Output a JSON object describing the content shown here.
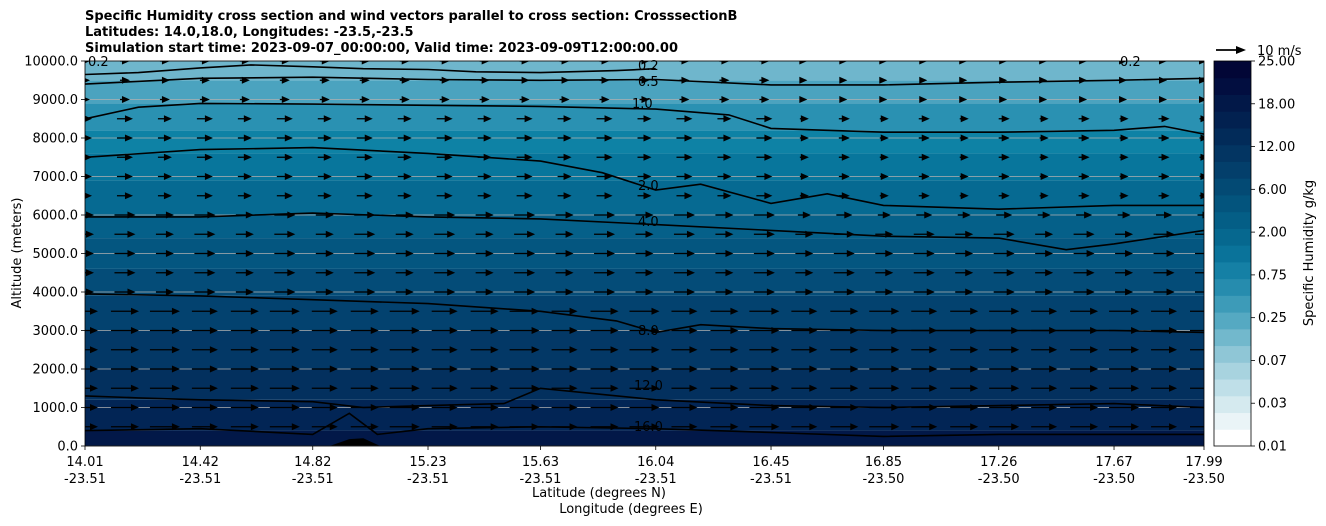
{
  "title_lines": [
    "Specific Humidity cross section and wind vectors parallel to cross section: CrosssectionB",
    "Latitudes: 14.0,18.0, Longitudes: -23.5,-23.5",
    "Simulation start time: 2023-09-07_00:00:00, Valid time: 2023-09-09T12:00:00.00"
  ],
  "chart_data": {
    "type": "contour-quiver",
    "ylabel": "Altitude (meters)",
    "xlabel_lat": "Latitude (degrees N)",
    "xlabel_lon": "Longitude (degrees E)",
    "ylim": [
      0,
      10000
    ],
    "y_ticks": [
      "0.0",
      "1000.0",
      "2000.0",
      "3000.0",
      "4000.0",
      "5000.0",
      "6000.0",
      "7000.0",
      "8000.0",
      "9000.0",
      "10000.0"
    ],
    "x_ticks": [
      {
        "lat": "14.01",
        "lon": "-23.51"
      },
      {
        "lat": "14.42",
        "lon": "-23.51"
      },
      {
        "lat": "14.82",
        "lon": "-23.51"
      },
      {
        "lat": "15.23",
        "lon": "-23.51"
      },
      {
        "lat": "15.63",
        "lon": "-23.51"
      },
      {
        "lat": "16.04",
        "lon": "-23.51"
      },
      {
        "lat": "16.45",
        "lon": "-23.51"
      },
      {
        "lat": "16.85",
        "lon": "-23.50"
      },
      {
        "lat": "17.26",
        "lon": "-23.50"
      },
      {
        "lat": "17.67",
        "lon": "-23.50"
      },
      {
        "lat": "17.99",
        "lon": "-23.50"
      }
    ],
    "colorbar": {
      "label": "Specific Humidity g/kg",
      "tick_labels": [
        "0.01",
        "0.03",
        "0.07",
        "0.25",
        "0.75",
        "2.00",
        "6.00",
        "12.00",
        "18.00",
        "25.00"
      ],
      "colors": [
        "#ffffff",
        "#eaf4f7",
        "#d5eaef",
        "#bfdfe8",
        "#a8d3df",
        "#8fc6d6",
        "#72b8cc",
        "#55a9c2",
        "#3d9bb8",
        "#268cae",
        "#1580a5",
        "#0a739a",
        "#06688f",
        "#045e86",
        "#03547d",
        "#034a74",
        "#033f6b",
        "#033562",
        "#022b59",
        "#022150",
        "#021848",
        "#020e40",
        "#020636"
      ]
    },
    "contour_labels": [
      "0.2",
      "0.5",
      "1.0",
      "2.0",
      "4.0",
      "8.0",
      "12.0",
      "16.0",
      "0.2",
      "0.2"
    ],
    "contours": [
      {
        "level": 0.2,
        "x": [
          14.01,
          14.2,
          14.42,
          14.6,
          14.82,
          15.0,
          15.23,
          15.4,
          15.63,
          15.9,
          16.04
        ],
        "alt": [
          9650,
          9700,
          9820,
          9900,
          9850,
          9800,
          9780,
          9720,
          9700,
          9750,
          9800
        ]
      },
      {
        "level": 0.5,
        "x": [
          14.01,
          14.42,
          14.82,
          15.23,
          15.63,
          16.04,
          16.45,
          16.85,
          17.26,
          17.67,
          17.99
        ],
        "alt": [
          9400,
          9550,
          9580,
          9520,
          9500,
          9520,
          9380,
          9380,
          9450,
          9500,
          9550
        ]
      },
      {
        "level": 1.0,
        "x": [
          14.01,
          14.2,
          14.42,
          14.82,
          15.23,
          15.63,
          16.04,
          16.3,
          16.45,
          16.85,
          17.26,
          17.67,
          17.85,
          17.99
        ],
        "alt": [
          8500,
          8800,
          8900,
          8880,
          8850,
          8820,
          8750,
          8600,
          8250,
          8150,
          8150,
          8200,
          8300,
          8100
        ]
      },
      {
        "level": 2.0,
        "x": [
          14.01,
          14.42,
          14.82,
          15.23,
          15.63,
          15.85,
          16.04,
          16.2,
          16.45,
          16.65,
          16.85,
          17.26,
          17.67,
          17.99
        ],
        "alt": [
          7500,
          7700,
          7750,
          7600,
          7400,
          7100,
          6650,
          6800,
          6300,
          6550,
          6250,
          6150,
          6250,
          6250
        ]
      },
      {
        "level": 4.0,
        "x": [
          14.01,
          14.42,
          14.82,
          15.23,
          15.63,
          16.04,
          16.45,
          16.85,
          17.26,
          17.5,
          17.67,
          17.99
        ],
        "alt": [
          5950,
          5950,
          6050,
          5950,
          5900,
          5750,
          5600,
          5450,
          5400,
          5100,
          5250,
          5600
        ]
      },
      {
        "level": 8.0,
        "x": [
          14.01,
          14.42,
          14.82,
          15.23,
          15.63,
          15.9,
          16.04,
          16.2,
          16.45,
          16.85,
          17.26,
          17.67,
          17.99
        ],
        "alt": [
          3950,
          3900,
          3800,
          3700,
          3500,
          3250,
          2950,
          3150,
          3050,
          3000,
          3000,
          3000,
          2950
        ]
      },
      {
        "level": 12.0,
        "x": [
          14.01,
          14.2,
          14.42,
          14.82,
          15.0,
          15.23,
          15.5,
          15.63,
          16.04,
          16.45,
          16.85,
          17.26,
          17.67,
          17.99
        ],
        "alt": [
          1300,
          1250,
          1200,
          1150,
          1000,
          1050,
          1100,
          1500,
          1200,
          1050,
          1000,
          1050,
          1100,
          1000
        ]
      },
      {
        "level": 16.0,
        "x": [
          14.01,
          14.42,
          14.82,
          14.95,
          15.05,
          15.23,
          15.63,
          16.04,
          16.45,
          16.85,
          17.26,
          17.67,
          17.99
        ],
        "alt": [
          400,
          450,
          300,
          850,
          300,
          450,
          500,
          450,
          350,
          250,
          300,
          300,
          300
        ]
      }
    ],
    "terrain": {
      "x": [
        14.88,
        14.95,
        15.0,
        15.06
      ],
      "alt": [
        0,
        180,
        200,
        0
      ]
    },
    "wind_reference": "10 m/s",
    "wind_direction": "eastward (parallel to cross section)"
  }
}
